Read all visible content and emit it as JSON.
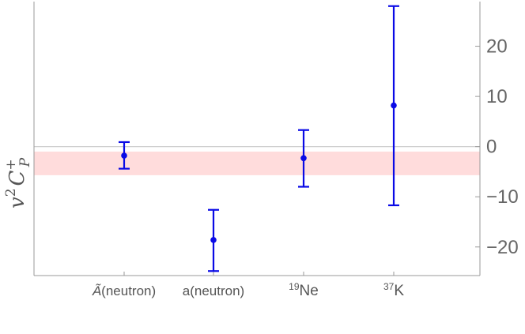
{
  "chart_data": {
    "type": "scatter",
    "title": "",
    "xlabel": "",
    "ylabel": {
      "base": "v",
      "power": "2",
      "symbol": "C",
      "superscript": "+",
      "subscript": "P"
    },
    "categories": [
      {
        "label": "(neutron)",
        "prefix": "Ã",
        "superscript": ""
      },
      {
        "label": "(neutron)",
        "prefix": "a",
        "superscript": ""
      },
      {
        "label": "Ne",
        "prefix": "",
        "superscript": "19"
      },
      {
        "label": "K",
        "prefix": "",
        "superscript": "37"
      }
    ],
    "series": [
      {
        "points": [
          {
            "category": 0,
            "y": -1.8,
            "err_low": -4.4,
            "err_high": 0.9
          },
          {
            "category": 1,
            "y": -18.6,
            "err_low": -24.8,
            "err_high": -12.6
          },
          {
            "category": 2,
            "y": -2.3,
            "err_low": -8.0,
            "err_high": 3.3
          },
          {
            "category": 3,
            "y": 8.2,
            "err_low": -11.7,
            "err_high": 28.0
          }
        ]
      }
    ],
    "band": {
      "low": -5.7,
      "high": -1.0
    },
    "reference_line": 0,
    "yticks": [
      -20,
      -10,
      0,
      10,
      20
    ],
    "ytick_labels": [
      "−20",
      "−10",
      "0",
      "10",
      "20"
    ],
    "ylim": [
      -25.7,
      28.9
    ],
    "yaxis_position": "right",
    "grid": false,
    "colors": {
      "points": "#0a0ae6",
      "band": "#ffdcdc",
      "reference_line": "#c8c8c8",
      "axis": "#999999"
    }
  }
}
